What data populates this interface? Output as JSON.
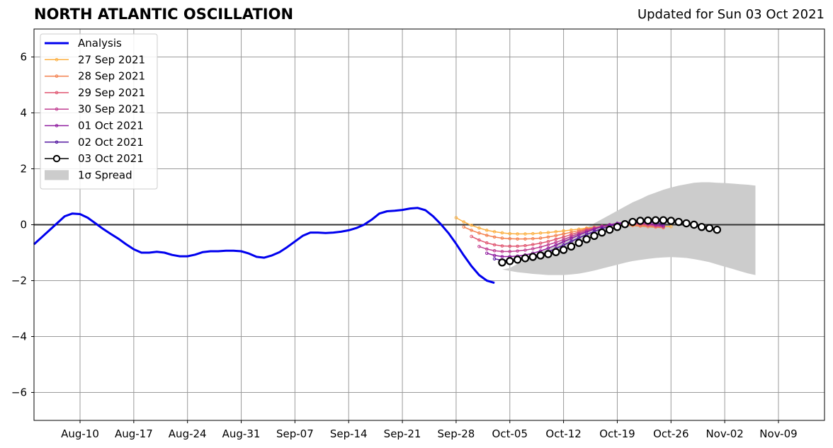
{
  "header": {
    "title": "NORTH ATLANTIC OSCILLATION",
    "updated": "Updated for Sun 03 Oct 2021"
  },
  "chart_data": {
    "type": "line",
    "title": "NORTH ATLANTIC OSCILLATION",
    "subtitle": "Updated for Sun 03 Oct 2021",
    "xlabel": "",
    "ylabel": "",
    "x_range": [
      "2021-08-04",
      "2021-11-15"
    ],
    "xlim": [
      0,
      103
    ],
    "ylim": [
      -7,
      7
    ],
    "grid": true,
    "legend_position": "top-left",
    "x_ticks": [
      {
        "label": "Aug-10",
        "date": "2021-08-10",
        "day": 6
      },
      {
        "label": "Aug-17",
        "date": "2021-08-17",
        "day": 13
      },
      {
        "label": "Aug-24",
        "date": "2021-08-24",
        "day": 20
      },
      {
        "label": "Aug-31",
        "date": "2021-08-31",
        "day": 27
      },
      {
        "label": "Sep-07",
        "date": "2021-09-07",
        "day": 34
      },
      {
        "label": "Sep-14",
        "date": "2021-09-14",
        "day": 41
      },
      {
        "label": "Sep-21",
        "date": "2021-09-21",
        "day": 48
      },
      {
        "label": "Sep-28",
        "date": "2021-09-28",
        "day": 55
      },
      {
        "label": "Oct-05",
        "date": "2021-10-05",
        "day": 62
      },
      {
        "label": "Oct-12",
        "date": "2021-10-12",
        "day": 69
      },
      {
        "label": "Oct-19",
        "date": "2021-10-19",
        "day": 76
      },
      {
        "label": "Oct-26",
        "date": "2021-10-26",
        "day": 83
      },
      {
        "label": "Nov-02",
        "date": "2021-11-02",
        "day": 90
      },
      {
        "label": "Nov-09",
        "date": "2021-11-09",
        "day": 97
      }
    ],
    "y_ticks": [
      {
        "value": 6,
        "label": "6"
      },
      {
        "value": 4,
        "label": "4"
      },
      {
        "value": 2,
        "label": "2"
      },
      {
        "value": 0,
        "label": "0"
      },
      {
        "value": -2,
        "label": "−2"
      },
      {
        "value": -4,
        "label": "−4"
      },
      {
        "value": -6,
        "label": "−6"
      }
    ],
    "analysis": {
      "name": "Analysis",
      "color": "#0000ee",
      "start_day": 0,
      "values": [
        -0.7,
        -0.45,
        -0.2,
        0.05,
        0.3,
        0.4,
        0.38,
        0.25,
        0.05,
        -0.15,
        -0.33,
        -0.5,
        -0.7,
        -0.88,
        -1.0,
        -1.0,
        -0.97,
        -1.0,
        -1.08,
        -1.13,
        -1.13,
        -1.07,
        -0.98,
        -0.95,
        -0.95,
        -0.93,
        -0.93,
        -0.95,
        -1.03,
        -1.15,
        -1.18,
        -1.1,
        -0.98,
        -0.8,
        -0.6,
        -0.4,
        -0.28,
        -0.28,
        -0.3,
        -0.28,
        -0.25,
        -0.2,
        -0.12,
        0.0,
        0.18,
        0.4,
        0.48,
        0.5,
        0.53,
        0.58,
        0.6,
        0.52,
        0.3,
        0.02,
        -0.3,
        -0.68,
        -1.1,
        -1.48,
        -1.8,
        -2.0,
        -2.08
      ]
    },
    "spread": {
      "name": "1σ Spread",
      "color": "#cccccc",
      "start_day": 60,
      "upper": [
        -2.1,
        -1.6,
        -1.55,
        -1.4,
        -1.28,
        -1.15,
        -1.0,
        -0.85,
        -0.7,
        -0.55,
        -0.4,
        -0.25,
        -0.1,
        0.05,
        0.2,
        0.35,
        0.5,
        0.65,
        0.8,
        0.92,
        1.05,
        1.15,
        1.25,
        1.33,
        1.4,
        1.45,
        1.5,
        1.52,
        1.52,
        1.5,
        1.49,
        1.47,
        1.45,
        1.43,
        1.4
      ],
      "lower": [
        -2.1,
        -1.6,
        -1.65,
        -1.7,
        -1.73,
        -1.76,
        -1.78,
        -1.8,
        -1.8,
        -1.8,
        -1.78,
        -1.75,
        -1.7,
        -1.64,
        -1.57,
        -1.5,
        -1.43,
        -1.36,
        -1.3,
        -1.26,
        -1.22,
        -1.19,
        -1.17,
        -1.16,
        -1.17,
        -1.19,
        -1.23,
        -1.28,
        -1.34,
        -1.42,
        -1.5,
        -1.58,
        -1.66,
        -1.74,
        -1.8
      ]
    },
    "series": [
      {
        "name": "27 Sep 2021",
        "color": "#fcb042",
        "start_day": 55,
        "values": [
          0.25,
          0.1,
          -0.02,
          -0.12,
          -0.2,
          -0.25,
          -0.29,
          -0.32,
          -0.33,
          -0.33,
          -0.32,
          -0.3,
          -0.28,
          -0.25,
          -0.22,
          -0.19,
          -0.16,
          -0.12,
          -0.09,
          -0.06,
          -0.04,
          -0.03,
          -0.02,
          -0.02,
          -0.02,
          -0.03,
          -0.04,
          -0.06,
          -0.07
        ]
      },
      {
        "name": "28 Sep 2021",
        "color": "#f3804e",
        "start_day": 56,
        "values": [
          -0.08,
          -0.2,
          -0.3,
          -0.38,
          -0.44,
          -0.48,
          -0.5,
          -0.51,
          -0.51,
          -0.5,
          -0.48,
          -0.44,
          -0.39,
          -0.33,
          -0.27,
          -0.21,
          -0.15,
          -0.1,
          -0.06,
          -0.03,
          -0.02,
          -0.02,
          -0.03,
          -0.05,
          -0.07,
          -0.09,
          -0.11
        ]
      },
      {
        "name": "29 Sep 2021",
        "color": "#e05570",
        "start_day": 57,
        "values": [
          -0.42,
          -0.55,
          -0.65,
          -0.72,
          -0.76,
          -0.77,
          -0.77,
          -0.75,
          -0.71,
          -0.66,
          -0.6,
          -0.52,
          -0.44,
          -0.35,
          -0.26,
          -0.18,
          -0.11,
          -0.05,
          -0.01,
          0.01,
          0.02,
          0.02,
          0.0,
          -0.02,
          -0.05,
          -0.08
        ]
      },
      {
        "name": "30 Sep 2021",
        "color": "#c13f92",
        "start_day": 58,
        "values": [
          -0.78,
          -0.87,
          -0.93,
          -0.96,
          -0.96,
          -0.94,
          -0.91,
          -0.86,
          -0.8,
          -0.72,
          -0.63,
          -0.53,
          -0.42,
          -0.32,
          -0.22,
          -0.13,
          -0.06,
          0.0,
          0.04,
          0.06,
          0.06,
          0.04,
          0.01,
          -0.03,
          -0.07
        ]
      },
      {
        "name": "01 Oct 2021",
        "color": "#8e1a9e",
        "start_day": 59,
        "values": [
          -1.02,
          -1.1,
          -1.14,
          -1.14,
          -1.12,
          -1.08,
          -1.02,
          -0.94,
          -0.84,
          -0.73,
          -0.61,
          -0.49,
          -0.37,
          -0.26,
          -0.16,
          -0.07,
          0.0,
          0.05,
          0.08,
          0.09,
          0.08,
          0.05,
          0.01,
          -0.04
        ]
      },
      {
        "name": "02 Oct 2021",
        "color": "#5418a0",
        "start_day": 60,
        "values": [
          -1.22,
          -1.27,
          -1.28,
          -1.26,
          -1.21,
          -1.15,
          -1.07,
          -0.97,
          -0.85,
          -0.73,
          -0.6,
          -0.47,
          -0.35,
          -0.24,
          -0.14,
          -0.05,
          0.02,
          0.07,
          0.1,
          0.11,
          0.1,
          0.07,
          0.03
        ]
      },
      {
        "name": "03 Oct 2021",
        "color": "#000000",
        "start_day": 61,
        "values": [
          -1.35,
          -1.3,
          -1.25,
          -1.2,
          -1.15,
          -1.1,
          -1.05,
          -0.98,
          -0.9,
          -0.78,
          -0.65,
          -0.52,
          -0.4,
          -0.28,
          -0.18,
          -0.08,
          0.02,
          0.1,
          0.14,
          0.15,
          0.16,
          0.16,
          0.14,
          0.1,
          0.05,
          0.0,
          -0.08,
          -0.12,
          -0.18
        ]
      }
    ]
  }
}
